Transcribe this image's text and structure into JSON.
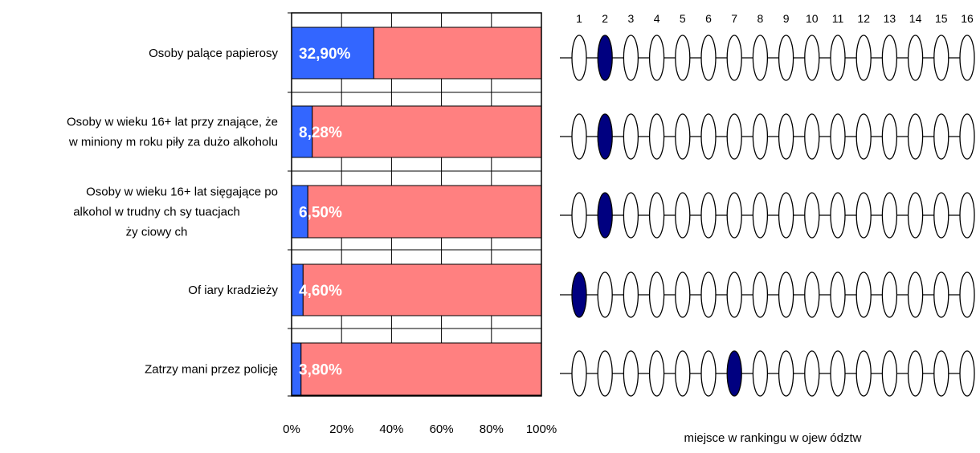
{
  "chart_data": [
    {
      "type": "bar",
      "stacked": true,
      "orientation": "horizontal",
      "categories": [
        "Osoby  palące papierosy",
        "Osoby  w wieku 16+ lat przy znające, że w miniony m roku piły  za dużo alkoholu",
        "Osoby  w wieku 16+ lat sięgające po alkohol w trudny ch sy tuacjach ży ciowy ch",
        "Of iary  kradzieży",
        "Zatrzy mani przez policję"
      ],
      "category_lines": [
        [
          "Osoby  palące papierosy"
        ],
        [
          "Osoby  w wieku 16+ lat przy znające, że",
          "w miniony m roku piły  za dużo alkoholu"
        ],
        [
          "Osoby  w wieku 16+ lat sięgające po",
          "alkohol w trudny ch sy tuacjach",
          "ży ciowy ch"
        ],
        [
          "Of iary  kradzieży"
        ],
        [
          "Zatrzy mani przez policję"
        ]
      ],
      "series": [
        {
          "values": [
            32.9,
            8.28,
            6.5,
            4.6,
            3.8
          ]
        },
        {
          "values": [
            67.1,
            91.72,
            93.5,
            95.4,
            96.2
          ]
        }
      ],
      "data_labels": [
        "32,90%",
        "8,28%",
        "6,50%",
        "4,60%",
        "3,80%"
      ],
      "xlim": [
        0,
        100
      ],
      "x_ticks": [
        "0%",
        "20%",
        "40%",
        "60%",
        "80%",
        "100%"
      ],
      "grid": true,
      "colors": {
        "share": "#3366FF",
        "rest": "#FF8080",
        "grid": "#000000"
      }
    },
    {
      "type": "scatter",
      "description_kind": "ranking-position",
      "x_ticks": [
        "1",
        "2",
        "3",
        "4",
        "5",
        "6",
        "7",
        "8",
        "9",
        "10",
        "11",
        "12",
        "13",
        "14",
        "15",
        "16"
      ],
      "positions": [
        2,
        2,
        2,
        1,
        7
      ],
      "xlabel": "miejsce w  rankingu w ojew ództw",
      "colors": {
        "highlight": "#000080",
        "empty": "#FFFFFF"
      }
    }
  ]
}
